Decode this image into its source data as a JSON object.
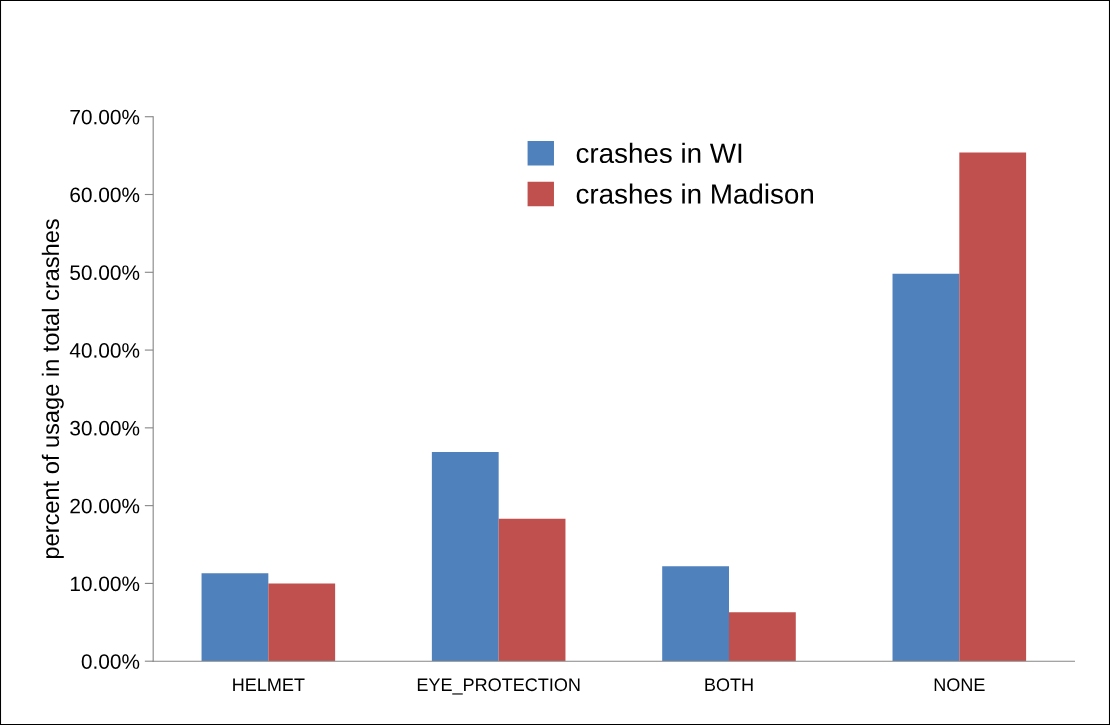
{
  "chart_data": {
    "type": "bar",
    "ylabel": "percent of usage in total crashes",
    "categories": [
      "HELMET",
      "EYE_PROTECTION",
      "BOTH",
      "NONE"
    ],
    "series": [
      {
        "name": "crashes in WI",
        "color": "#4f81bd",
        "values": [
          11.3,
          26.9,
          12.2,
          49.8
        ]
      },
      {
        "name": "crashes in Madison",
        "color": "#c0504d",
        "values": [
          10.0,
          18.3,
          6.3,
          65.4
        ]
      }
    ],
    "ylim": [
      0,
      70
    ],
    "yticks": [
      {
        "value": 0,
        "label": "0.00%"
      },
      {
        "value": 10,
        "label": "10.00%"
      },
      {
        "value": 20,
        "label": "20.00%"
      },
      {
        "value": 30,
        "label": "30.00%"
      },
      {
        "value": 40,
        "label": "40.00%"
      },
      {
        "value": 50,
        "label": "50.00%"
      },
      {
        "value": 60,
        "label": "60.00%"
      },
      {
        "value": 70,
        "label": "70.00%"
      }
    ],
    "grid": false,
    "legend": "top"
  }
}
